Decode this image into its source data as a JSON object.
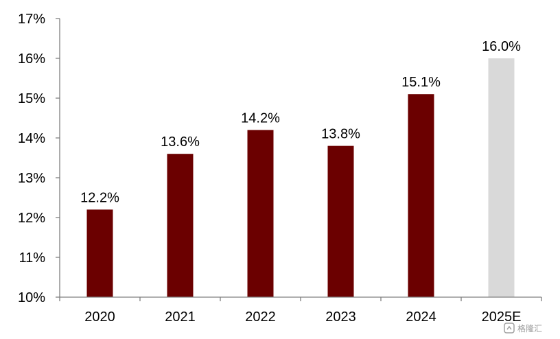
{
  "chart_data": {
    "type": "bar",
    "categories": [
      "2020",
      "2021",
      "2022",
      "2023",
      "2024",
      "2025E"
    ],
    "values": [
      12.2,
      13.6,
      14.2,
      13.8,
      15.1,
      16.0
    ],
    "data_labels": [
      "12.2%",
      "13.6%",
      "14.2%",
      "13.8%",
      "15.1%",
      "16.0%"
    ],
    "yticks": [
      10,
      11,
      12,
      13,
      14,
      15,
      16,
      17
    ],
    "ytick_labels": [
      "10%",
      "11%",
      "12%",
      "13%",
      "14%",
      "15%",
      "16%",
      "17%"
    ],
    "ylim": [
      10,
      17
    ],
    "grid": false,
    "title": "",
    "xlabel": "",
    "ylabel": "",
    "colors": {
      "actual": "#6b0000",
      "estimate": "#d9d9d9",
      "axis": "#7f7f7f"
    }
  },
  "watermark": {
    "text": "格隆汇"
  }
}
